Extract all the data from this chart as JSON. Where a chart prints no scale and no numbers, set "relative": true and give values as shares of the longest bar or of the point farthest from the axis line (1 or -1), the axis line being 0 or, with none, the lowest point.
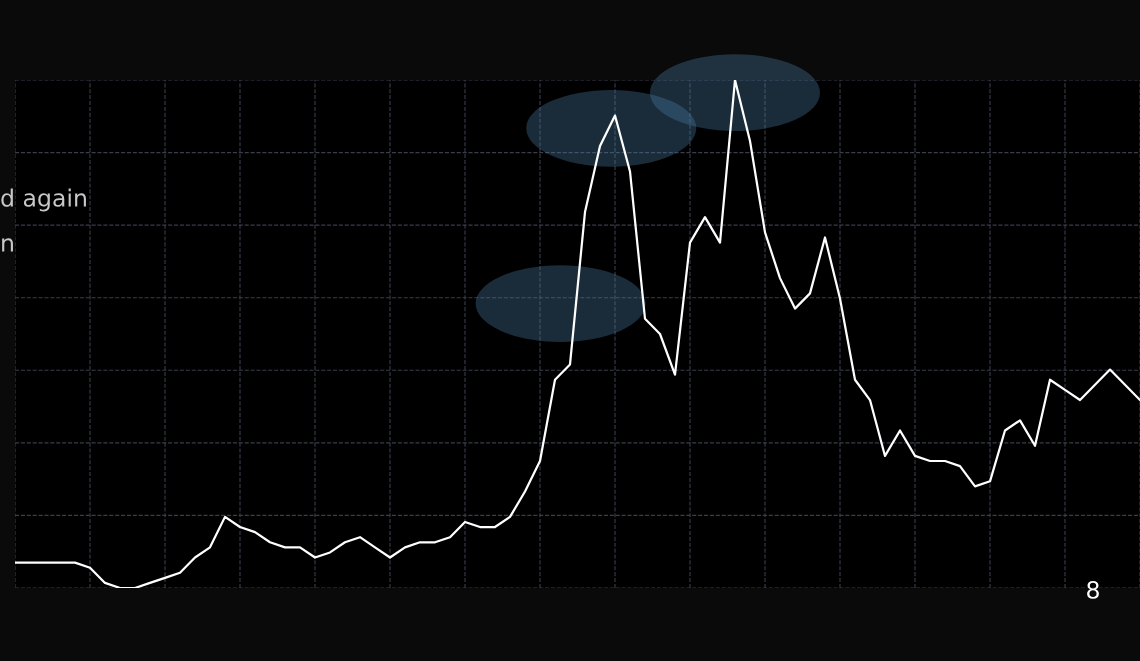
{
  "chart_data": {
    "type": "line",
    "relative": true,
    "grid": true,
    "line_style": "solid",
    "marker": "none",
    "categories": [
      null,
      null,
      null,
      null,
      null,
      null,
      null,
      null,
      null,
      null,
      null,
      null,
      null,
      null,
      null,
      null,
      null,
      null,
      null,
      null,
      null,
      null,
      null,
      null,
      null,
      null,
      null,
      null,
      null,
      null,
      null,
      null,
      null,
      null,
      null,
      null,
      null,
      null,
      null,
      null,
      null,
      null,
      null,
      null,
      null,
      null,
      null,
      null,
      null,
      null,
      null,
      null,
      null,
      null,
      null,
      null,
      null,
      null,
      null,
      null,
      null,
      null,
      null,
      null,
      null,
      null,
      null,
      null,
      null,
      null,
      null,
      null,
      null,
      null,
      null,
      null
    ],
    "series": [
      {
        "color": "#ffffff",
        "values": [
          0.05,
          0.05,
          0.05,
          0.05,
          0.05,
          0.04,
          0.01,
          0.0,
          0,
          0.01,
          0.02,
          0.03,
          0.06,
          0.08,
          0.14,
          0.12,
          0.11,
          0.09,
          0.08,
          0.08,
          0.06,
          0.07,
          0.09,
          0.1,
          0.08,
          0.06,
          0.08,
          0.09,
          0.09,
          0.1,
          0.13,
          0.12,
          0.12,
          0.14,
          0.19,
          0.25,
          0.41,
          0.44,
          0.74,
          0.87,
          0.93,
          0.82,
          0.53,
          0.5,
          0.42,
          0.68,
          0.73,
          0.68,
          1,
          0.88,
          0.7,
          0.61,
          0.55,
          0.58,
          0.69,
          0.57,
          0.41,
          0.37,
          0.26,
          0.31,
          0.26,
          0.25,
          0.25,
          0.24,
          0.2,
          0.21,
          0.31,
          0.33,
          0.28,
          0.41,
          0.39,
          0.37,
          0.4,
          0.43,
          0.4,
          0.37
        ]
      }
    ],
    "annotations": [
      "d again",
      "n",
      "8"
    ]
  }
}
